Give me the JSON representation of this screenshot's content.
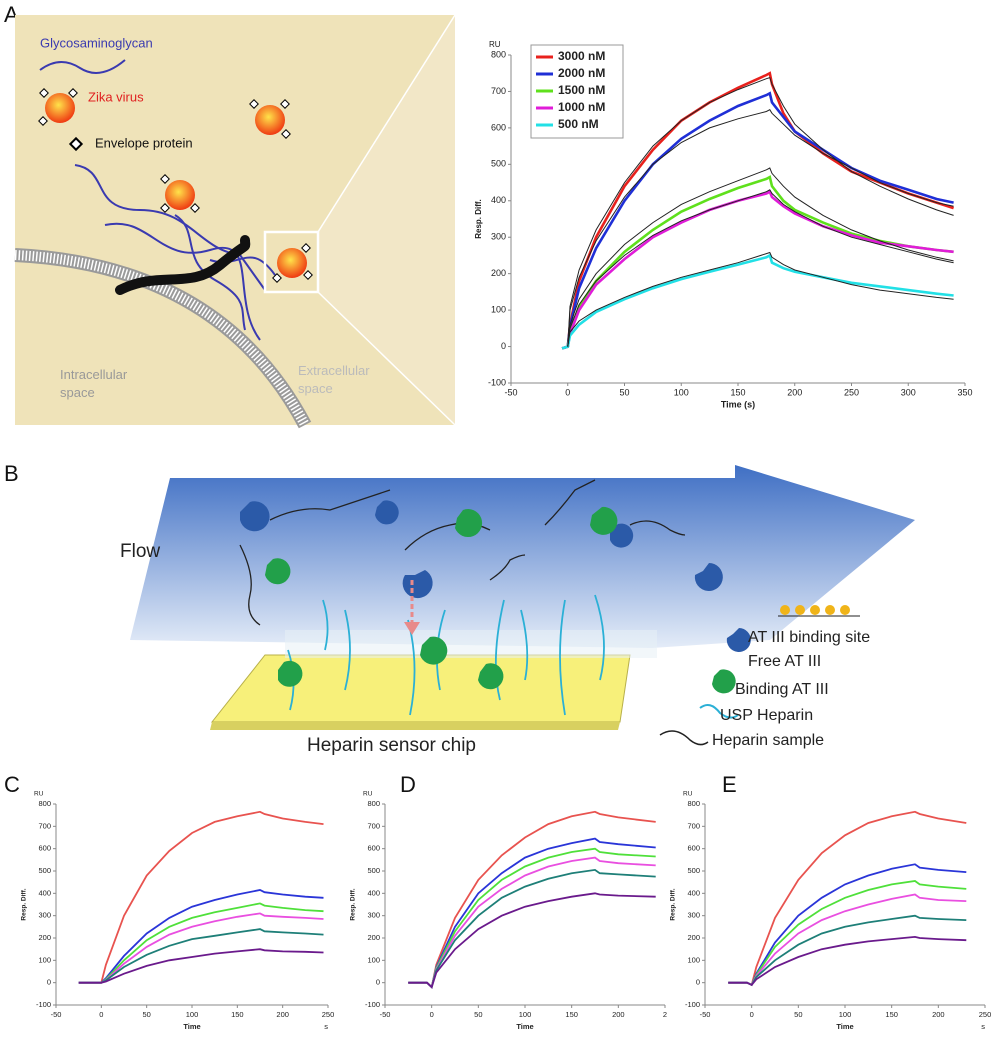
{
  "panels": [
    "A",
    "B",
    "C",
    "D",
    "E"
  ],
  "diagram_a": {
    "glycosaminoglycan": "Glycosaminoglycan",
    "virus": "Zika virus",
    "envelope": "Envelope protein",
    "intracellular": [
      "Intracellular",
      "space"
    ],
    "extracellular": [
      "Extracellular",
      "space"
    ]
  },
  "diagram_b": {
    "flow": "Flow",
    "chip": "Heparin sensor chip",
    "legend": [
      "AT III binding site",
      "Free AT III",
      "Binding AT III",
      "USP Heparin",
      "Heparin sample"
    ]
  },
  "chart_data": [
    {
      "type": "line",
      "unit": "RU",
      "ylabel": "Resp. Diff.",
      "xlabel": "Time (s)",
      "legend": "upper left",
      "xlim": [
        -50,
        350
      ],
      "xticks": [
        -50,
        0,
        50,
        100,
        150,
        200,
        250,
        300,
        350
      ],
      "ylim": [
        -100,
        800
      ],
      "yticks": [
        -100,
        0,
        100,
        200,
        300,
        400,
        500,
        600,
        700,
        800
      ],
      "x": [
        -5,
        0,
        2,
        10,
        25,
        50,
        75,
        100,
        125,
        150,
        175,
        178,
        180,
        190,
        200,
        225,
        250,
        275,
        300,
        325,
        340
      ],
      "series": [
        {
          "name": "3000 nM",
          "color": "#e8211d",
          "values": [
            -5,
            0,
            60,
            180,
            300,
            440,
            540,
            620,
            670,
            710,
            745,
            750,
            720,
            640,
            590,
            530,
            480,
            450,
            420,
            395,
            380
          ]
        },
        {
          "name": "2000 nM",
          "color": "#1f2fd6",
          "values": [
            -5,
            0,
            55,
            160,
            270,
            400,
            500,
            570,
            620,
            660,
            690,
            695,
            670,
            630,
            590,
            540,
            490,
            455,
            430,
            405,
            395
          ]
        },
        {
          "name": "1500 nM",
          "color": "#5fe01c",
          "values": [
            -5,
            0,
            40,
            110,
            180,
            260,
            320,
            370,
            405,
            435,
            460,
            465,
            440,
            400,
            375,
            340,
            310,
            290,
            275,
            265,
            260
          ]
        },
        {
          "name": "1000 nM",
          "color": "#e01cd8",
          "values": [
            -5,
            0,
            35,
            100,
            170,
            240,
            300,
            340,
            375,
            400,
            420,
            425,
            410,
            385,
            365,
            330,
            305,
            285,
            275,
            265,
            260
          ]
        },
        {
          "name": "500 nM",
          "color": "#22e0e6",
          "values": [
            -5,
            0,
            30,
            60,
            95,
            130,
            160,
            185,
            205,
            225,
            245,
            250,
            230,
            215,
            205,
            190,
            175,
            165,
            155,
            145,
            140
          ]
        }
      ],
      "fits": [
        {
          "color": "#222222",
          "values": [
            null,
            0,
            110,
            210,
            320,
            450,
            550,
            620,
            670,
            705,
            735,
            738,
            720,
            660,
            610,
            540,
            480,
            440,
            405,
            375,
            360
          ]
        },
        {
          "color": "#222222",
          "values": [
            null,
            0,
            100,
            190,
            290,
            410,
            500,
            560,
            600,
            625,
            645,
            650,
            640,
            610,
            580,
            530,
            490,
            450,
            420,
            395,
            385
          ]
        },
        {
          "color": "#222222",
          "values": [
            null,
            0,
            60,
            130,
            200,
            280,
            340,
            390,
            425,
            455,
            485,
            490,
            475,
            440,
            410,
            360,
            320,
            290,
            265,
            245,
            235
          ]
        },
        {
          "color": "#222222",
          "values": [
            null,
            0,
            50,
            115,
            180,
            250,
            305,
            345,
            375,
            400,
            425,
            430,
            420,
            390,
            370,
            330,
            300,
            280,
            260,
            240,
            230
          ]
        },
        {
          "color": "#222222",
          "values": [
            null,
            0,
            40,
            70,
            100,
            135,
            165,
            190,
            210,
            230,
            255,
            258,
            245,
            225,
            210,
            190,
            170,
            155,
            145,
            135,
            130
          ]
        }
      ]
    },
    {
      "type": "line",
      "unit": "RU",
      "ylabel": "Resp. Diff.",
      "xlabel": "Time",
      "x_unit": "s",
      "xlim": [
        -50,
        250
      ],
      "xticks": [
        -50,
        0,
        50,
        100,
        150,
        200,
        250
      ],
      "ylim": [
        -100,
        800
      ],
      "yticks": [
        -100,
        0,
        100,
        200,
        300,
        400,
        500,
        600,
        700,
        800
      ],
      "x": [
        -25,
        -5,
        0,
        5,
        25,
        50,
        75,
        100,
        125,
        150,
        175,
        180,
        200,
        225,
        245
      ],
      "series": [
        {
          "color": "#e8534f",
          "values": [
            0,
            0,
            0,
            80,
            300,
            480,
            590,
            670,
            720,
            745,
            765,
            755,
            735,
            720,
            710
          ]
        },
        {
          "color": "#2a35d8",
          "values": [
            0,
            0,
            0,
            20,
            120,
            220,
            290,
            340,
            370,
            395,
            415,
            405,
            395,
            385,
            380
          ]
        },
        {
          "color": "#4fe03a",
          "values": [
            0,
            0,
            0,
            15,
            100,
            190,
            250,
            290,
            315,
            335,
            355,
            345,
            335,
            325,
            320
          ]
        },
        {
          "color": "#e94fe0",
          "values": [
            0,
            0,
            0,
            12,
            85,
            160,
            215,
            250,
            275,
            295,
            310,
            300,
            295,
            290,
            285
          ]
        },
        {
          "color": "#1e7f78",
          "values": [
            0,
            0,
            0,
            10,
            70,
            125,
            165,
            195,
            210,
            225,
            240,
            230,
            225,
            220,
            215
          ]
        },
        {
          "color": "#6a1a8c",
          "values": [
            0,
            0,
            0,
            5,
            40,
            75,
            100,
            115,
            130,
            140,
            150,
            145,
            140,
            138,
            135
          ]
        }
      ]
    },
    {
      "type": "line",
      "unit": "RU",
      "ylabel": "Resp. Diff.",
      "xlabel": "Time",
      "xlim": [
        -50,
        250
      ],
      "xticks": [
        -50,
        0,
        50,
        100,
        150,
        200,
        {
          "value": 250,
          "label": "2"
        }
      ],
      "ylim": [
        -100,
        800
      ],
      "yticks": [
        -100,
        0,
        100,
        200,
        300,
        400,
        500,
        600,
        700,
        800
      ],
      "x": [
        -25,
        -5,
        0,
        5,
        25,
        50,
        75,
        100,
        125,
        150,
        175,
        180,
        200,
        240
      ],
      "series": [
        {
          "color": "#e8534f",
          "values": [
            0,
            0,
            -20,
            80,
            290,
            460,
            570,
            650,
            710,
            745,
            765,
            755,
            740,
            720
          ]
        },
        {
          "color": "#2a35d8",
          "values": [
            0,
            0,
            -20,
            70,
            250,
            400,
            490,
            560,
            600,
            625,
            645,
            630,
            620,
            605
          ]
        },
        {
          "color": "#4fe03a",
          "values": [
            0,
            0,
            -20,
            65,
            230,
            370,
            460,
            520,
            560,
            585,
            600,
            585,
            575,
            565
          ]
        },
        {
          "color": "#e94fe0",
          "values": [
            0,
            0,
            -20,
            60,
            210,
            340,
            420,
            480,
            520,
            545,
            560,
            545,
            535,
            525
          ]
        },
        {
          "color": "#1e7f78",
          "values": [
            0,
            0,
            -20,
            55,
            190,
            300,
            380,
            430,
            465,
            490,
            505,
            490,
            485,
            475
          ]
        },
        {
          "color": "#6a1a8c",
          "values": [
            0,
            0,
            -20,
            45,
            150,
            240,
            300,
            340,
            365,
            385,
            400,
            395,
            390,
            385
          ]
        }
      ]
    },
    {
      "type": "line",
      "unit": "RU",
      "ylabel": "Resp. Diff.",
      "xlabel": "Time",
      "x_unit": "s",
      "xlim": [
        -50,
        250
      ],
      "xticks": [
        -50,
        0,
        50,
        100,
        150,
        200,
        250
      ],
      "ylim": [
        -100,
        800
      ],
      "yticks": [
        -100,
        0,
        100,
        200,
        300,
        400,
        500,
        600,
        700,
        800
      ],
      "x": [
        -25,
        -5,
        0,
        5,
        25,
        50,
        75,
        100,
        125,
        150,
        175,
        180,
        200,
        230
      ],
      "series": [
        {
          "color": "#e8534f",
          "values": [
            0,
            0,
            -10,
            70,
            290,
            460,
            580,
            660,
            715,
            745,
            765,
            755,
            735,
            715
          ]
        },
        {
          "color": "#2a35d8",
          "values": [
            0,
            0,
            -10,
            40,
            180,
            300,
            380,
            440,
            480,
            510,
            530,
            515,
            505,
            495
          ]
        },
        {
          "color": "#4fe03a",
          "values": [
            0,
            0,
            -10,
            35,
            160,
            260,
            330,
            380,
            415,
            440,
            455,
            440,
            430,
            420
          ]
        },
        {
          "color": "#e94fe0",
          "values": [
            0,
            0,
            -10,
            30,
            130,
            220,
            280,
            320,
            350,
            375,
            395,
            380,
            370,
            365
          ]
        },
        {
          "color": "#1e7f78",
          "values": [
            0,
            0,
            -10,
            25,
            100,
            170,
            220,
            250,
            270,
            285,
            300,
            290,
            285,
            280
          ]
        },
        {
          "color": "#6a1a8c",
          "values": [
            0,
            0,
            -10,
            15,
            70,
            115,
            150,
            170,
            185,
            195,
            205,
            200,
            195,
            190
          ]
        }
      ]
    }
  ]
}
